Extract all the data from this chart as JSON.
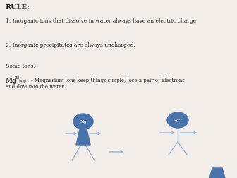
{
  "background_color": "#f2ede8",
  "text_color": "#2a2a2a",
  "rule_text": "RULE:",
  "line1": "1. Inorganic ions that dissolve in water always have an electric charge.",
  "line2": "2. Inorganic precipitates are always uncharged.",
  "line3": "Some ions:",
  "figure_color": "#4a72ab",
  "stick_color": "#8ab0d4",
  "arrow_color": "#8ab0d4"
}
